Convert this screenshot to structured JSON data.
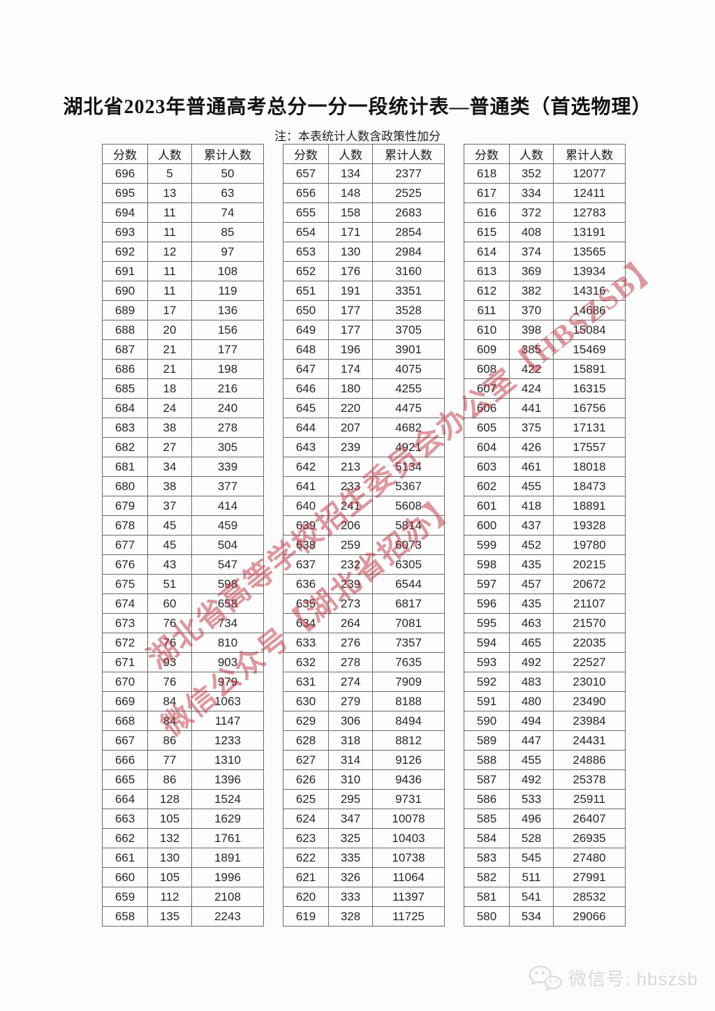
{
  "page": {
    "title": "湖北省2023年普通高考总分一分一段统计表—普通类（首选物理）",
    "note": "注：本表统计人数含政策性加分"
  },
  "table_headers": [
    "分数",
    "人数",
    "累计人数"
  ],
  "tables": [
    {
      "rows": [
        [
          696,
          5,
          50
        ],
        [
          695,
          13,
          63
        ],
        [
          694,
          11,
          74
        ],
        [
          693,
          11,
          85
        ],
        [
          692,
          12,
          97
        ],
        [
          691,
          11,
          108
        ],
        [
          690,
          11,
          119
        ],
        [
          689,
          17,
          136
        ],
        [
          688,
          20,
          156
        ],
        [
          687,
          21,
          177
        ],
        [
          686,
          21,
          198
        ],
        [
          685,
          18,
          216
        ],
        [
          684,
          24,
          240
        ],
        [
          683,
          38,
          278
        ],
        [
          682,
          27,
          305
        ],
        [
          681,
          34,
          339
        ],
        [
          680,
          38,
          377
        ],
        [
          679,
          37,
          414
        ],
        [
          678,
          45,
          459
        ],
        [
          677,
          45,
          504
        ],
        [
          676,
          43,
          547
        ],
        [
          675,
          51,
          598
        ],
        [
          674,
          60,
          658
        ],
        [
          673,
          76,
          734
        ],
        [
          672,
          76,
          810
        ],
        [
          671,
          93,
          903
        ],
        [
          670,
          76,
          979
        ],
        [
          669,
          84,
          1063
        ],
        [
          668,
          84,
          1147
        ],
        [
          667,
          86,
          1233
        ],
        [
          666,
          77,
          1310
        ],
        [
          665,
          86,
          1396
        ],
        [
          664,
          128,
          1524
        ],
        [
          663,
          105,
          1629
        ],
        [
          662,
          132,
          1761
        ],
        [
          661,
          130,
          1891
        ],
        [
          660,
          105,
          1996
        ],
        [
          659,
          112,
          2108
        ],
        [
          658,
          135,
          2243
        ]
      ]
    },
    {
      "rows": [
        [
          657,
          134,
          2377
        ],
        [
          656,
          148,
          2525
        ],
        [
          655,
          158,
          2683
        ],
        [
          654,
          171,
          2854
        ],
        [
          653,
          130,
          2984
        ],
        [
          652,
          176,
          3160
        ],
        [
          651,
          191,
          3351
        ],
        [
          650,
          177,
          3528
        ],
        [
          649,
          177,
          3705
        ],
        [
          648,
          196,
          3901
        ],
        [
          647,
          174,
          4075
        ],
        [
          646,
          180,
          4255
        ],
        [
          645,
          220,
          4475
        ],
        [
          644,
          207,
          4682
        ],
        [
          643,
          239,
          4921
        ],
        [
          642,
          213,
          5134
        ],
        [
          641,
          233,
          5367
        ],
        [
          640,
          241,
          5608
        ],
        [
          639,
          206,
          5814
        ],
        [
          638,
          259,
          6073
        ],
        [
          637,
          232,
          6305
        ],
        [
          636,
          239,
          6544
        ],
        [
          635,
          273,
          6817
        ],
        [
          634,
          264,
          7081
        ],
        [
          633,
          276,
          7357
        ],
        [
          632,
          278,
          7635
        ],
        [
          631,
          274,
          7909
        ],
        [
          630,
          279,
          8188
        ],
        [
          629,
          306,
          8494
        ],
        [
          628,
          318,
          8812
        ],
        [
          627,
          314,
          9126
        ],
        [
          626,
          310,
          9436
        ],
        [
          625,
          295,
          9731
        ],
        [
          624,
          347,
          10078
        ],
        [
          623,
          325,
          10403
        ],
        [
          622,
          335,
          10738
        ],
        [
          621,
          326,
          11064
        ],
        [
          620,
          333,
          11397
        ],
        [
          619,
          328,
          11725
        ]
      ]
    },
    {
      "rows": [
        [
          618,
          352,
          12077
        ],
        [
          617,
          334,
          12411
        ],
        [
          616,
          372,
          12783
        ],
        [
          615,
          408,
          13191
        ],
        [
          614,
          374,
          13565
        ],
        [
          613,
          369,
          13934
        ],
        [
          612,
          382,
          14316
        ],
        [
          611,
          370,
          14686
        ],
        [
          610,
          398,
          15084
        ],
        [
          609,
          385,
          15469
        ],
        [
          608,
          422,
          15891
        ],
        [
          607,
          424,
          16315
        ],
        [
          606,
          441,
          16756
        ],
        [
          605,
          375,
          17131
        ],
        [
          604,
          426,
          17557
        ],
        [
          603,
          461,
          18018
        ],
        [
          602,
          455,
          18473
        ],
        [
          601,
          418,
          18891
        ],
        [
          600,
          437,
          19328
        ],
        [
          599,
          452,
          19780
        ],
        [
          598,
          435,
          20215
        ],
        [
          597,
          457,
          20672
        ],
        [
          596,
          435,
          21107
        ],
        [
          595,
          463,
          21570
        ],
        [
          594,
          465,
          22035
        ],
        [
          593,
          492,
          22527
        ],
        [
          592,
          483,
          23010
        ],
        [
          591,
          480,
          23490
        ],
        [
          590,
          494,
          23984
        ],
        [
          589,
          447,
          24431
        ],
        [
          588,
          455,
          24886
        ],
        [
          587,
          492,
          25378
        ],
        [
          586,
          533,
          25911
        ],
        [
          585,
          496,
          26407
        ],
        [
          584,
          528,
          26935
        ],
        [
          583,
          545,
          27480
        ],
        [
          582,
          511,
          27991
        ],
        [
          581,
          541,
          28532
        ],
        [
          580,
          534,
          29066
        ]
      ]
    }
  ],
  "watermark": {
    "line1": "湖北省高等学校招生委员会办公室【HBSZSB】",
    "line2": "微信公众号【湖北省招办】",
    "color": "#be3240"
  },
  "footer": {
    "wechat_label": "微信号: hbszsb"
  }
}
